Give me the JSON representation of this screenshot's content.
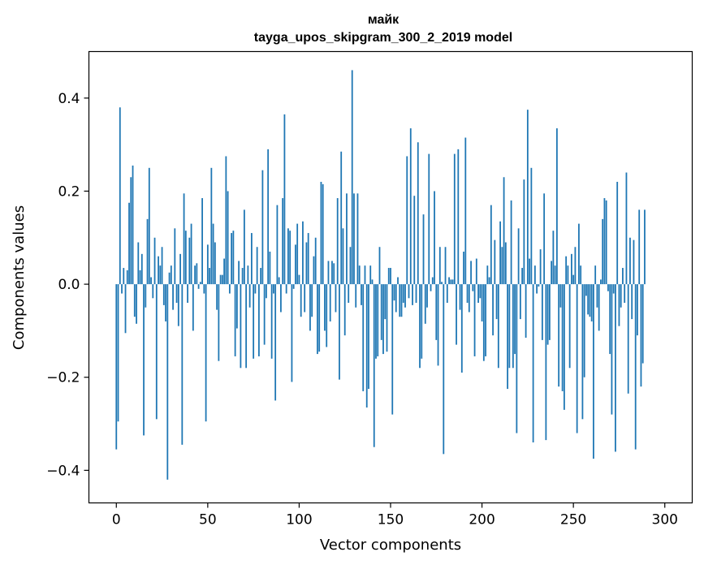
{
  "chart_data": {
    "type": "bar",
    "title": "майк",
    "subtitle": "tayga_upos_skipgram_300_2_2019 model",
    "xlabel": "Vector components",
    "ylabel": "Components values",
    "xlim": [
      -15,
      315
    ],
    "ylim": [
      -0.47,
      0.5
    ],
    "xticks": [
      0,
      50,
      100,
      150,
      200,
      250,
      300
    ],
    "xtick_labels": [
      "0",
      "50",
      "100",
      "150",
      "200",
      "250",
      "300"
    ],
    "yticks": [
      -0.4,
      -0.2,
      0.0,
      0.2,
      0.4
    ],
    "ytick_labels": [
      "−0.4",
      "−0.2",
      "0.0",
      "0.2",
      "0.4"
    ],
    "grid": false,
    "bar_color": "#1f77b4",
    "values": [
      -0.355,
      -0.295,
      0.38,
      -0.02,
      0.035,
      -0.105,
      0.03,
      0.175,
      0.23,
      0.255,
      -0.07,
      -0.085,
      0.09,
      0.03,
      0.065,
      -0.325,
      -0.05,
      0.14,
      0.25,
      0.015,
      -0.03,
      0.1,
      -0.29,
      0.06,
      0.04,
      0.08,
      -0.045,
      -0.08,
      -0.42,
      0.025,
      0.04,
      -0.055,
      0.12,
      -0.04,
      -0.09,
      0.065,
      -0.345,
      0.195,
      0.115,
      -0.04,
      0.1,
      0.13,
      -0.1,
      0.04,
      0.045,
      -0.01,
      0.005,
      0.185,
      -0.02,
      -0.295,
      0.085,
      0.035,
      0.25,
      0.13,
      0.09,
      -0.055,
      -0.165,
      0.02,
      0.02,
      0.055,
      0.275,
      0.2,
      -0.02,
      0.11,
      0.115,
      -0.155,
      -0.095,
      0.05,
      -0.18,
      0.035,
      0.16,
      -0.18,
      0.04,
      -0.05,
      0.11,
      -0.16,
      -0.02,
      0.08,
      -0.155,
      0.035,
      0.245,
      -0.13,
      -0.03,
      0.29,
      0.07,
      -0.16,
      -0.02,
      -0.25,
      0.17,
      0.015,
      -0.06,
      0.185,
      0.365,
      -0.02,
      0.12,
      0.115,
      -0.21,
      -0.01,
      0.085,
      0.13,
      0.02,
      -0.07,
      0.135,
      -0.06,
      0.09,
      0.11,
      -0.1,
      -0.07,
      0.06,
      0.1,
      -0.15,
      -0.145,
      0.22,
      0.215,
      -0.1,
      -0.135,
      0.05,
      -0.08,
      0.05,
      0.045,
      -0.06,
      0.185,
      -0.205,
      0.285,
      0.12,
      -0.11,
      0.195,
      -0.04,
      0.08,
      0.46,
      0.195,
      -0.05,
      0.195,
      0.04,
      -0.045,
      -0.23,
      0.04,
      -0.265,
      -0.225,
      0.04,
      0.01,
      -0.35,
      -0.16,
      -0.155,
      0.08,
      -0.12,
      -0.15,
      -0.075,
      -0.145,
      0.035,
      0.035,
      -0.28,
      -0.035,
      -0.06,
      0.015,
      -0.07,
      -0.07,
      -0.04,
      -0.05,
      0.275,
      -0.03,
      0.335,
      -0.045,
      0.19,
      -0.04,
      0.305,
      -0.18,
      -0.16,
      0.15,
      -0.085,
      -0.05,
      0.28,
      -0.015,
      0.015,
      0.2,
      -0.12,
      -0.175,
      0.08,
      0.005,
      -0.365,
      0.08,
      -0.04,
      0.015,
      0.01,
      0.01,
      0.28,
      -0.13,
      0.29,
      -0.055,
      -0.19,
      0.07,
      0.315,
      -0.04,
      -0.06,
      0.05,
      -0.015,
      -0.155,
      0.055,
      -0.04,
      -0.03,
      -0.08,
      -0.165,
      -0.155,
      0.04,
      0.015,
      0.17,
      -0.11,
      0.095,
      -0.075,
      -0.18,
      0.135,
      0.08,
      0.23,
      0.09,
      -0.225,
      -0.18,
      0.18,
      -0.18,
      -0.15,
      -0.32,
      0.12,
      -0.075,
      0.035,
      0.225,
      -0.115,
      0.375,
      0.055,
      0.25,
      -0.34,
      0.04,
      -0.02,
      -0.005,
      0.075,
      -0.12,
      0.195,
      -0.335,
      -0.13,
      -0.12,
      0.05,
      0.115,
      0.04,
      0.335,
      -0.22,
      -0.05,
      -0.23,
      -0.27,
      0.06,
      0.04,
      -0.18,
      0.065,
      0.02,
      0.08,
      -0.32,
      0.13,
      0.04,
      -0.29,
      -0.2,
      -0.025,
      -0.065,
      -0.07,
      -0.08,
      -0.375,
      0.04,
      -0.05,
      -0.1,
      0.01,
      0.14,
      0.185,
      0.18,
      -0.015,
      -0.15,
      -0.28,
      -0.02,
      -0.36,
      0.22,
      -0.09,
      -0.05,
      0.035,
      -0.04,
      0.24,
      -0.235,
      0.1,
      -0.075,
      0.095,
      -0.355,
      -0.11,
      0.16,
      -0.22,
      -0.17,
      0.16
    ]
  }
}
